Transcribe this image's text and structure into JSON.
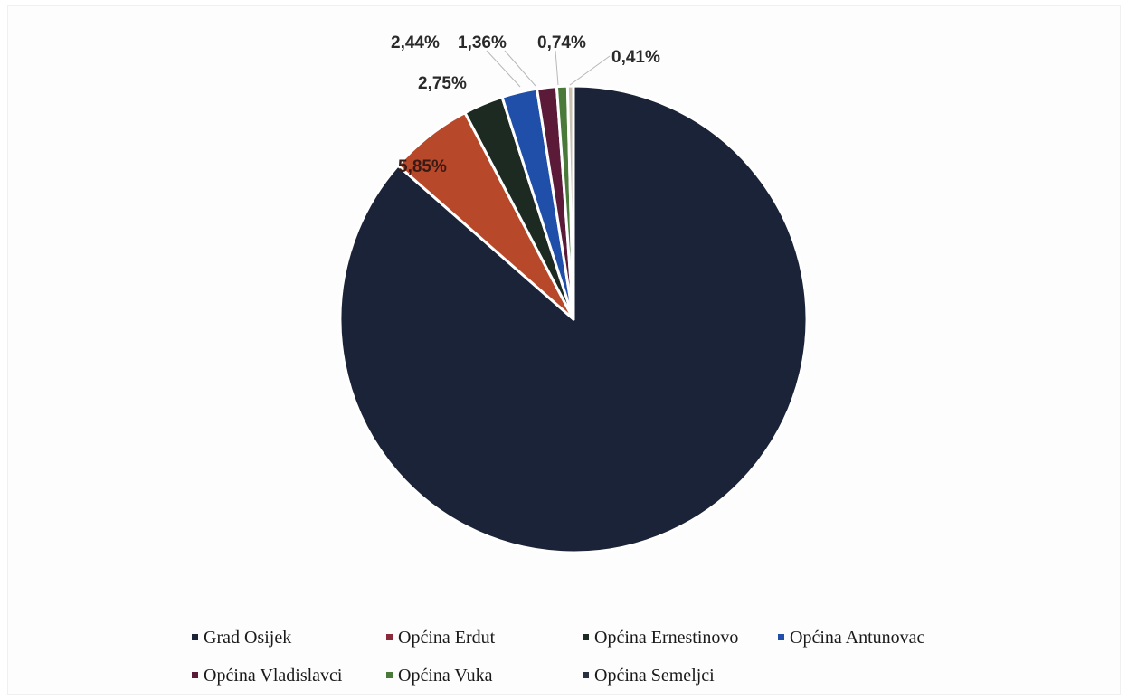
{
  "chart_data": {
    "type": "pie",
    "title": "",
    "slices": [
      {
        "name": "Grad Osijek",
        "value": 86.45,
        "label": "",
        "color": "#1a2338"
      },
      {
        "name": "Općina Erdut",
        "value": 5.85,
        "label": "5,85%",
        "color": "#b8482a"
      },
      {
        "name": "Općina Ernestinovo",
        "value": 2.75,
        "label": "2,75%",
        "color": "#1d2a22"
      },
      {
        "name": "Općina Antunovac",
        "value": 2.44,
        "label": "2,44%",
        "color": "#1f4fa8"
      },
      {
        "name": "Općina Vladislavci",
        "value": 1.36,
        "label": "1,36%",
        "color": "#5a1a38"
      },
      {
        "name": "Općina Vuka",
        "value": 0.74,
        "label": "0,74%",
        "color": "#4a7a3a"
      },
      {
        "name": "Općina Semeljci",
        "value": 0.41,
        "label": "0,41%",
        "color": "#c8c0b0"
      }
    ],
    "legend_position": "bottom"
  }
}
